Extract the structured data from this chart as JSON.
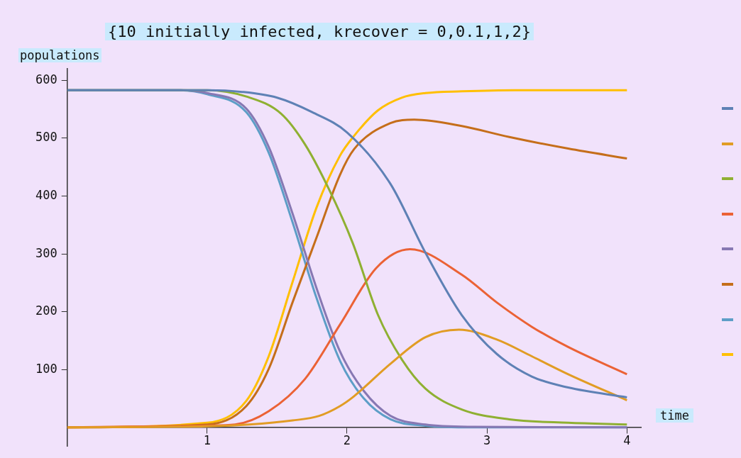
{
  "chart_data": {
    "type": "line",
    "title": "{10 initially infected, krecover = 0,0.1,1,2}",
    "xlabel": "time",
    "ylabel": "populations",
    "xlim": [
      0,
      4.1
    ],
    "xticks": [
      {
        "value": 0,
        "label": null
      },
      1,
      2,
      3,
      4
    ],
    "ylim": [
      -33,
      620
    ],
    "yticks": [
      100,
      200,
      300,
      400,
      500,
      600
    ],
    "grid": false,
    "marker": "none",
    "line_style": "solid",
    "series": [
      {
        "color": "#5e81b5",
        "x": [
          0,
          1,
          1.25,
          1.5,
          1.75,
          2,
          2.31,
          2.56,
          2.82,
          3.07,
          3.32,
          3.58,
          4
        ],
        "values": [
          583,
          583,
          580,
          570,
          545,
          510,
          421,
          302,
          194,
          127,
          88,
          69,
          52
        ]
      },
      {
        "color": "#e19c24",
        "x": [
          0,
          1,
          1.3,
          1.61,
          1.8,
          1.95,
          2.05,
          2.31,
          2.56,
          2.8,
          3.07,
          3.32,
          3.58,
          4
        ],
        "values": [
          0,
          2,
          5,
          12,
          20,
          37,
          54,
          110,
          156,
          169,
          152,
          123,
          92,
          47
        ]
      },
      {
        "color": "#8fb032",
        "x": [
          0,
          1,
          1.28,
          1.53,
          1.7,
          1.87,
          2.04,
          2.22,
          2.39,
          2.56,
          2.82,
          3.16,
          3.58,
          4
        ],
        "values": [
          583,
          583,
          572,
          542,
          489,
          412,
          319,
          195,
          118,
          67,
          31,
          14,
          8,
          5
        ]
      },
      {
        "color": "#eb6235",
        "x": [
          0,
          1,
          1.2,
          1.44,
          1.7,
          1.95,
          2.21,
          2.45,
          2.82,
          3.07,
          3.32,
          3.58,
          4
        ],
        "values": [
          0,
          3,
          5,
          28,
          84,
          178,
          276,
          308,
          264,
          216,
          174,
          139,
          92
        ]
      },
      {
        "color": "#8778b3",
        "x": [
          0,
          0.8,
          1,
          1.28,
          1.44,
          1.61,
          1.78,
          1.95,
          2.12,
          2.31,
          2.56,
          2.9,
          4
        ],
        "values": [
          583,
          583,
          578,
          551,
          485,
          370,
          242,
          131,
          63,
          20,
          5,
          1,
          0
        ]
      },
      {
        "color": "#c56e1a",
        "x": [
          0,
          1,
          1.28,
          1.44,
          1.61,
          1.78,
          1.95,
          2.05,
          2.31,
          2.48,
          2.82,
          3.16,
          3.58,
          4
        ],
        "values": [
          0,
          5,
          37,
          101,
          216,
          327,
          437,
          481,
          526,
          532,
          521,
          502,
          482,
          465
        ]
      },
      {
        "color": "#5d9ec7",
        "x": [
          0,
          0.8,
          1,
          1.28,
          1.44,
          1.61,
          1.78,
          1.95,
          2.12,
          2.31,
          2.56,
          2.9,
          4
        ],
        "values": [
          583,
          583,
          576,
          545,
          475,
          355,
          225,
          115,
          50,
          14,
          3,
          0,
          0
        ]
      },
      {
        "color": "#ffbf00",
        "x": [
          0,
          1,
          1.28,
          1.44,
          1.61,
          1.78,
          1.95,
          2.05,
          2.22,
          2.39,
          2.56,
          2.82,
          3.2,
          4
        ],
        "values": [
          0,
          8,
          46,
          123,
          251,
          379,
          470,
          504,
          548,
          570,
          578,
          581,
          583,
          583
        ]
      }
    ]
  }
}
